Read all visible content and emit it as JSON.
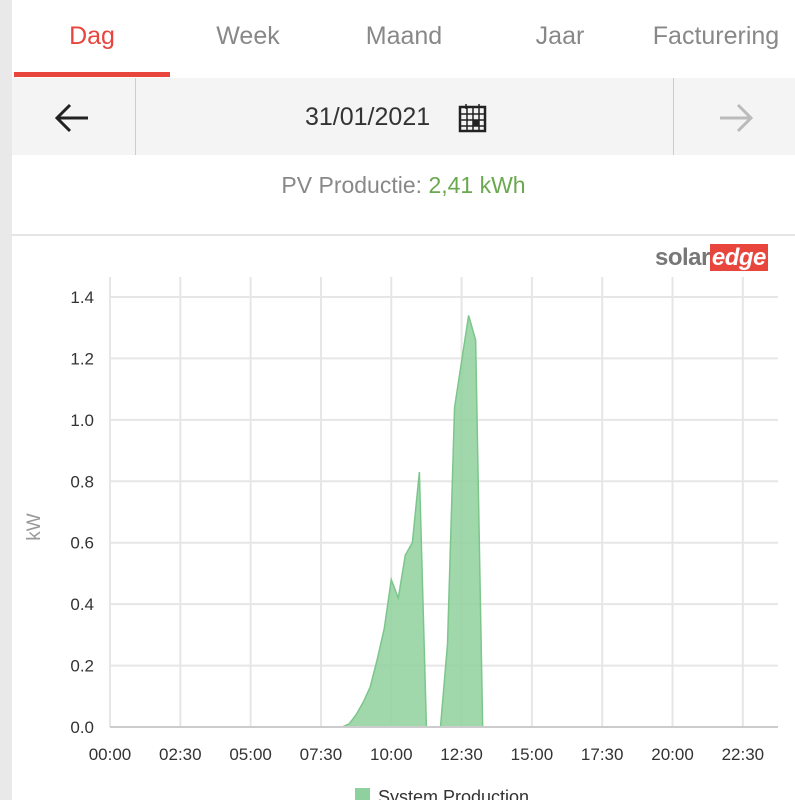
{
  "tabs": [
    "Dag",
    "Week",
    "Maand",
    "Jaar",
    "Facturering"
  ],
  "date": "31/01/2021",
  "summary": {
    "label": "PV Productie:",
    "value": "2,41 kWh"
  },
  "brand": {
    "part1": "solar",
    "part2": "edge"
  },
  "chart_data": {
    "type": "area",
    "y_label": "kW",
    "x": [
      0,
      8.25,
      8.5,
      8.75,
      9.0,
      9.25,
      9.5,
      9.75,
      10.0,
      10.25,
      10.5,
      10.75,
      11.0,
      11.25,
      11.5,
      11.75,
      12.0,
      12.25,
      12.75,
      13.0,
      13.25,
      23.75
    ],
    "series": [
      {
        "name": "System Production",
        "color": "#8fd19e",
        "values": [
          0,
          0,
          0.01,
          0.04,
          0.08,
          0.13,
          0.22,
          0.32,
          0.48,
          0.42,
          0.56,
          0.6,
          0.83,
          0,
          0,
          0,
          0.27,
          1.04,
          1.34,
          1.26,
          0,
          0
        ]
      }
    ],
    "xlim": [
      0,
      23.75
    ],
    "xticks": [
      {
        "value": 0,
        "label": "00:00"
      },
      {
        "value": 2.5,
        "label": "02:30"
      },
      {
        "value": 5,
        "label": "05:00"
      },
      {
        "value": 7.5,
        "label": "07:30"
      },
      {
        "value": 10,
        "label": "10:00"
      },
      {
        "value": 12.5,
        "label": "12:30"
      },
      {
        "value": 15,
        "label": "15:00"
      },
      {
        "value": 17.5,
        "label": "17:30"
      },
      {
        "value": 20,
        "label": "20:00"
      },
      {
        "value": 22.5,
        "label": "22:30"
      }
    ],
    "ylim": [
      0,
      1.4
    ],
    "yticks": [
      {
        "value": 0,
        "label": "0.0"
      },
      0.2,
      0.4,
      0.6,
      0.8,
      {
        "value": 1,
        "label": "1.0"
      },
      1.2,
      1.4
    ],
    "grid": true
  }
}
